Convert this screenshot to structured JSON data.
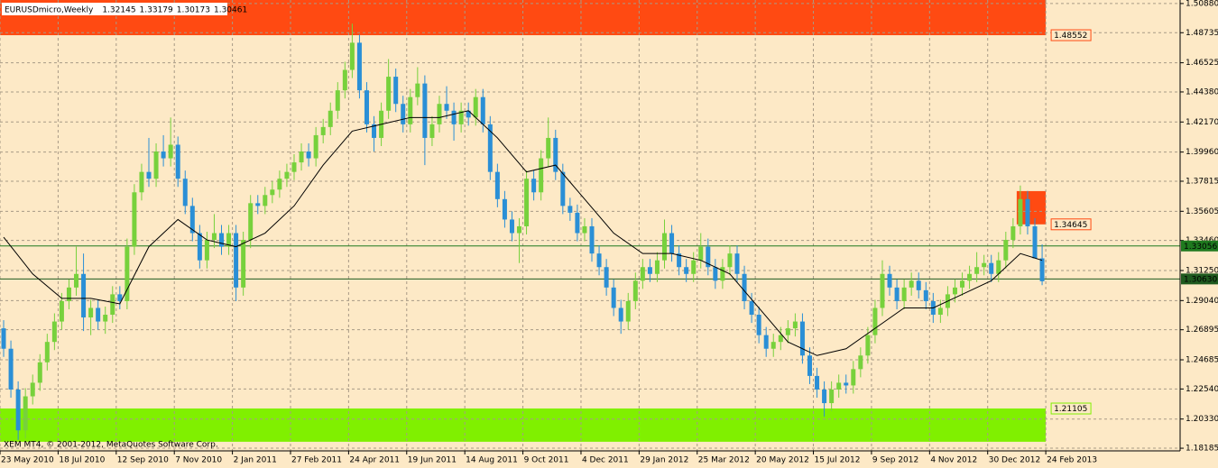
{
  "chart_data": {
    "type": "candlestick",
    "title": "EURUSDmicro,Weekly",
    "watermark": "XEM MT4, © 2001-2012, MetaQuotes Software Corp.",
    "background": "#fde9c6",
    "grid": true,
    "grid_color": "#a89a86",
    "up_color": "#77d13c",
    "down_color": "#2a8fd6",
    "ma_color": "#000000",
    "xlim": [
      -0.5,
      162
    ],
    "ylim": [
      1.1799,
      1.5114
    ],
    "xticks": [
      {
        "value": 0,
        "label": "23 May 2010"
      },
      {
        "value": 8,
        "label": "18 Jul 2010"
      },
      {
        "value": 16,
        "label": "12 Sep 2010"
      },
      {
        "value": 24,
        "label": "7 Nov 2010"
      },
      {
        "value": 32,
        "label": "2 Jan 2011"
      },
      {
        "value": 40,
        "label": "27 Feb 2011"
      },
      {
        "value": 48,
        "label": "24 Apr 2011"
      },
      {
        "value": 56,
        "label": "19 Jun 2011"
      },
      {
        "value": 64,
        "label": "14 Aug 2011"
      },
      {
        "value": 72,
        "label": "9 Oct 2011"
      },
      {
        "value": 80,
        "label": "4 Dec 2011"
      },
      {
        "value": 88,
        "label": "29 Jan 2012"
      },
      {
        "value": 96,
        "label": "25 Mar 2012"
      },
      {
        "value": 104,
        "label": "20 May 2012"
      },
      {
        "value": 112,
        "label": "15 Jul 2012"
      },
      {
        "value": 120,
        "label": "9 Sep 2012"
      },
      {
        "value": 128,
        "label": "4 Nov 2012"
      },
      {
        "value": 136,
        "label": "30 Dec 2012"
      },
      {
        "value": 144,
        "label": "24 Feb 2013"
      }
    ],
    "yticks": [
      {
        "value": 1.5088,
        "label": "1.50880"
      },
      1.48735,
      1.46525,
      {
        "value": 1.4438,
        "label": "1.44380"
      },
      {
        "value": 1.4217,
        "label": "1.42170"
      },
      {
        "value": 1.3996,
        "label": "1.39960"
      },
      1.37815,
      1.35605,
      {
        "value": 1.3346,
        "label": "1.33460"
      },
      {
        "value": 1.3125,
        "label": "1.31250"
      },
      {
        "value": 1.2904,
        "label": "1.29040"
      },
      1.26895,
      1.24685,
      {
        "value": 1.2254,
        "label": "1.22540"
      },
      {
        "value": 1.2033,
        "label": "1.20330"
      },
      1.18185
    ],
    "candles": [
      [
        1.27,
        1.276,
        1.249,
        1.255
      ],
      [
        1.255,
        1.261,
        1.219,
        1.225
      ],
      [
        1.225,
        1.231,
        1.188,
        1.195
      ],
      [
        1.195,
        1.226,
        1.189,
        1.22
      ],
      [
        1.22,
        1.236,
        1.214,
        1.23
      ],
      [
        1.23,
        1.251,
        1.224,
        1.245
      ],
      [
        1.245,
        1.266,
        1.239,
        1.26
      ],
      [
        1.26,
        1.281,
        1.254,
        1.275
      ],
      [
        1.275,
        1.296,
        1.269,
        1.29
      ],
      [
        1.29,
        1.306,
        1.284,
        1.3
      ],
      [
        1.3,
        1.33,
        1.294,
        1.31
      ],
      [
        1.31,
        1.325,
        1.268,
        1.278
      ],
      [
        1.278,
        1.291,
        1.265,
        1.285
      ],
      [
        1.285,
        1.291,
        1.269,
        1.275
      ],
      [
        1.275,
        1.286,
        1.266,
        1.28
      ],
      [
        1.28,
        1.301,
        1.274,
        1.295
      ],
      [
        1.295,
        1.301,
        1.284,
        1.29
      ],
      [
        1.29,
        1.336,
        1.284,
        1.33
      ],
      [
        1.33,
        1.376,
        1.324,
        1.37
      ],
      [
        1.37,
        1.391,
        1.364,
        1.385
      ],
      [
        1.385,
        1.41,
        1.374,
        1.38
      ],
      [
        1.38,
        1.406,
        1.374,
        1.4
      ],
      [
        1.4,
        1.412,
        1.389,
        1.395
      ],
      [
        1.395,
        1.425,
        1.389,
        1.405
      ],
      [
        1.405,
        1.411,
        1.374,
        1.38
      ],
      [
        1.38,
        1.386,
        1.354,
        1.36
      ],
      [
        1.36,
        1.366,
        1.334,
        1.34
      ],
      [
        1.34,
        1.346,
        1.314,
        1.32
      ],
      [
        1.32,
        1.341,
        1.314,
        1.335
      ],
      [
        1.335,
        1.354,
        1.329,
        1.34
      ],
      [
        1.34,
        1.346,
        1.324,
        1.33
      ],
      [
        1.33,
        1.346,
        1.324,
        1.34
      ],
      [
        1.34,
        1.346,
        1.29,
        1.3
      ],
      [
        1.3,
        1.341,
        1.294,
        1.335
      ],
      [
        1.335,
        1.368,
        1.329,
        1.362
      ],
      [
        1.362,
        1.368,
        1.354,
        1.36
      ],
      [
        1.36,
        1.374,
        1.354,
        1.368
      ],
      [
        1.368,
        1.378,
        1.362,
        1.372
      ],
      [
        1.372,
        1.386,
        1.366,
        1.38
      ],
      [
        1.38,
        1.391,
        1.374,
        1.385
      ],
      [
        1.385,
        1.398,
        1.379,
        1.392
      ],
      [
        1.392,
        1.406,
        1.386,
        1.4
      ],
      [
        1.4,
        1.406,
        1.389,
        1.395
      ],
      [
        1.395,
        1.418,
        1.389,
        1.412
      ],
      [
        1.412,
        1.424,
        1.406,
        1.418
      ],
      [
        1.418,
        1.436,
        1.412,
        1.43
      ],
      [
        1.43,
        1.451,
        1.424,
        1.445
      ],
      [
        1.445,
        1.466,
        1.439,
        1.46
      ],
      [
        1.46,
        1.494,
        1.454,
        1.48
      ],
      [
        1.48,
        1.486,
        1.439,
        1.445
      ],
      [
        1.445,
        1.451,
        1.414,
        1.42
      ],
      [
        1.42,
        1.426,
        1.4,
        1.41
      ],
      [
        1.41,
        1.436,
        1.404,
        1.43
      ],
      [
        1.43,
        1.468,
        1.424,
        1.455
      ],
      [
        1.455,
        1.461,
        1.429,
        1.435
      ],
      [
        1.435,
        1.441,
        1.414,
        1.42
      ],
      [
        1.42,
        1.446,
        1.414,
        1.44
      ],
      [
        1.44,
        1.462,
        1.434,
        1.45
      ],
      [
        1.45,
        1.456,
        1.39,
        1.41
      ],
      [
        1.41,
        1.426,
        1.404,
        1.42
      ],
      [
        1.42,
        1.441,
        1.414,
        1.435
      ],
      [
        1.435,
        1.448,
        1.424,
        1.43
      ],
      [
        1.43,
        1.436,
        1.408,
        1.42
      ],
      [
        1.42,
        1.436,
        1.414,
        1.43
      ],
      [
        1.43,
        1.436,
        1.419,
        1.425
      ],
      [
        1.425,
        1.446,
        1.419,
        1.44
      ],
      [
        1.44,
        1.446,
        1.414,
        1.42
      ],
      [
        1.42,
        1.426,
        1.379,
        1.385
      ],
      [
        1.385,
        1.391,
        1.359,
        1.365
      ],
      [
        1.365,
        1.371,
        1.344,
        1.35
      ],
      [
        1.35,
        1.356,
        1.334,
        1.34
      ],
      [
        1.34,
        1.351,
        1.318,
        1.345
      ],
      [
        1.345,
        1.386,
        1.339,
        1.38
      ],
      [
        1.38,
        1.386,
        1.364,
        1.37
      ],
      [
        1.37,
        1.401,
        1.364,
        1.395
      ],
      [
        1.395,
        1.425,
        1.389,
        1.41
      ],
      [
        1.41,
        1.416,
        1.379,
        1.385
      ],
      [
        1.385,
        1.391,
        1.354,
        1.36
      ],
      [
        1.36,
        1.366,
        1.349,
        1.355
      ],
      [
        1.355,
        1.361,
        1.334,
        1.34
      ],
      [
        1.34,
        1.351,
        1.334,
        1.345
      ],
      [
        1.345,
        1.351,
        1.319,
        1.325
      ],
      [
        1.325,
        1.331,
        1.309,
        1.315
      ],
      [
        1.315,
        1.321,
        1.294,
        1.3
      ],
      [
        1.3,
        1.306,
        1.279,
        1.285
      ],
      [
        1.285,
        1.291,
        1.266,
        1.275
      ],
      [
        1.275,
        1.296,
        1.269,
        1.29
      ],
      [
        1.29,
        1.311,
        1.284,
        1.305
      ],
      [
        1.305,
        1.321,
        1.299,
        1.315
      ],
      [
        1.315,
        1.321,
        1.304,
        1.31
      ],
      [
        1.31,
        1.326,
        1.304,
        1.32
      ],
      [
        1.32,
        1.35,
        1.314,
        1.34
      ],
      [
        1.34,
        1.346,
        1.319,
        1.325
      ],
      [
        1.325,
        1.331,
        1.309,
        1.315
      ],
      [
        1.315,
        1.321,
        1.304,
        1.31
      ],
      [
        1.31,
        1.326,
        1.304,
        1.32
      ],
      [
        1.32,
        1.34,
        1.314,
        1.33
      ],
      [
        1.33,
        1.336,
        1.309,
        1.315
      ],
      [
        1.315,
        1.321,
        1.299,
        1.305
      ],
      [
        1.305,
        1.321,
        1.299,
        1.315
      ],
      [
        1.315,
        1.331,
        1.309,
        1.325
      ],
      [
        1.325,
        1.331,
        1.304,
        1.31
      ],
      [
        1.31,
        1.316,
        1.284,
        1.29
      ],
      [
        1.29,
        1.296,
        1.274,
        1.28
      ],
      [
        1.28,
        1.286,
        1.259,
        1.265
      ],
      [
        1.265,
        1.271,
        1.249,
        1.255
      ],
      [
        1.255,
        1.266,
        1.249,
        1.26
      ],
      [
        1.26,
        1.271,
        1.254,
        1.265
      ],
      [
        1.265,
        1.276,
        1.259,
        1.27
      ],
      [
        1.27,
        1.281,
        1.264,
        1.275
      ],
      [
        1.275,
        1.281,
        1.244,
        1.25
      ],
      [
        1.25,
        1.256,
        1.229,
        1.235
      ],
      [
        1.235,
        1.241,
        1.219,
        1.225
      ],
      [
        1.225,
        1.231,
        1.205,
        1.215
      ],
      [
        1.215,
        1.231,
        1.209,
        1.225
      ],
      [
        1.225,
        1.236,
        1.219,
        1.23
      ],
      [
        1.23,
        1.236,
        1.222,
        1.228
      ],
      [
        1.228,
        1.246,
        1.222,
        1.24
      ],
      [
        1.24,
        1.256,
        1.234,
        1.25
      ],
      [
        1.25,
        1.271,
        1.244,
        1.265
      ],
      [
        1.265,
        1.291,
        1.259,
        1.285
      ],
      [
        1.285,
        1.32,
        1.279,
        1.31
      ],
      [
        1.31,
        1.316,
        1.294,
        1.3
      ],
      [
        1.3,
        1.306,
        1.284,
        1.29
      ],
      [
        1.29,
        1.306,
        1.284,
        1.3
      ],
      [
        1.3,
        1.311,
        1.294,
        1.305
      ],
      [
        1.305,
        1.311,
        1.292,
        1.298
      ],
      [
        1.298,
        1.304,
        1.284,
        1.29
      ],
      [
        1.29,
        1.296,
        1.274,
        1.28
      ],
      [
        1.28,
        1.291,
        1.274,
        1.285
      ],
      [
        1.285,
        1.301,
        1.279,
        1.295
      ],
      [
        1.295,
        1.306,
        1.289,
        1.3
      ],
      [
        1.3,
        1.311,
        1.294,
        1.305
      ],
      [
        1.305,
        1.316,
        1.299,
        1.31
      ],
      [
        1.31,
        1.326,
        1.304,
        1.315
      ],
      [
        1.315,
        1.324,
        1.309,
        1.318
      ],
      [
        1.318,
        1.324,
        1.304,
        1.31
      ],
      [
        1.31,
        1.326,
        1.304,
        1.32
      ],
      [
        1.32,
        1.341,
        1.314,
        1.335
      ],
      [
        1.335,
        1.351,
        1.329,
        1.345
      ],
      [
        1.345,
        1.375,
        1.339,
        1.365
      ],
      [
        1.365,
        1.371,
        1.339,
        1.345
      ],
      [
        1.345,
        1.351,
        1.324,
        1.32145
      ],
      [
        1.32145,
        1.33179,
        1.30173,
        1.30461
      ]
    ],
    "ma": {
      "x": [
        0,
        4,
        8,
        12,
        16,
        20,
        24,
        28,
        32,
        36,
        40,
        44,
        48,
        52,
        56,
        60,
        64,
        68,
        72,
        76,
        80,
        84,
        88,
        92,
        96,
        100,
        104,
        108,
        112,
        116,
        120,
        124,
        128,
        132,
        136,
        140,
        143
      ],
      "values": [
        1.337,
        1.31,
        1.292,
        1.292,
        1.288,
        1.33,
        1.35,
        1.335,
        1.33,
        1.34,
        1.36,
        1.39,
        1.415,
        1.42,
        1.425,
        1.425,
        1.43,
        1.41,
        1.385,
        1.39,
        1.365,
        1.34,
        1.325,
        1.325,
        1.32,
        1.31,
        1.285,
        1.26,
        1.25,
        1.255,
        1.27,
        1.285,
        1.285,
        1.295,
        1.305,
        1.325,
        1.32
      ]
    },
    "zones": [
      {
        "top": 1.5114,
        "bottom": 1.48552,
        "start": 0,
        "end": 143,
        "color": "#ff4a12",
        "label_at": "bottom"
      },
      {
        "top": 1.3709,
        "bottom": 1.34645,
        "start": 140,
        "end": 143,
        "color": "#ff4a12",
        "label_at": "bottom"
      },
      {
        "top": 1.21105,
        "bottom": 1.1866,
        "start": 0,
        "end": 143,
        "color": "#80f000",
        "label_at": "top"
      }
    ],
    "levels": [
      {
        "value": 1.33056,
        "color": "#1f7a1f"
      },
      {
        "value": 1.3063,
        "label": "1.30630",
        "color": "#1f5a1f"
      }
    ]
  }
}
